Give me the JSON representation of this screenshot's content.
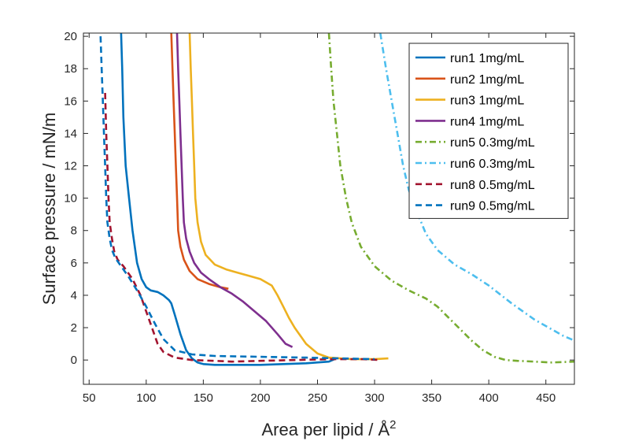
{
  "chart_data": {
    "type": "line",
    "xlabel": "Area per lipid / Å",
    "xlabel_superscript": "2",
    "ylabel": "Surface pressure / mN/m",
    "xlim": [
      45,
      475
    ],
    "ylim": [
      -1.5,
      20.2
    ],
    "xticks": [
      50,
      100,
      150,
      200,
      250,
      300,
      350,
      400,
      450
    ],
    "yticks": [
      0,
      2,
      4,
      6,
      8,
      10,
      12,
      14,
      16,
      18,
      20
    ],
    "grid": false,
    "legend_position": "top-right",
    "series": [
      {
        "name": "run1 1mg/mL",
        "color": "#0072BD",
        "dash": "solid",
        "x": [
          78,
          79,
          80,
          82,
          85,
          88,
          92,
          96,
          100,
          104,
          110,
          115,
          120,
          122,
          125,
          130,
          135,
          140,
          145,
          150,
          160,
          180,
          200,
          220,
          240,
          260,
          265
        ],
        "y": [
          20.2,
          18,
          15,
          12,
          10,
          8,
          6,
          5,
          4.5,
          4.3,
          4.2,
          4.0,
          3.7,
          3.5,
          2.8,
          1.6,
          0.6,
          0.1,
          -0.15,
          -0.25,
          -0.3,
          -0.3,
          -0.3,
          -0.25,
          -0.2,
          -0.1,
          0.05
        ]
      },
      {
        "name": "run2 1mg/mL",
        "color": "#D95319",
        "dash": "solid",
        "x": [
          122,
          123,
          124,
          125,
          126,
          127,
          128,
          130,
          133,
          138,
          145,
          155,
          165,
          172
        ],
        "y": [
          20.2,
          18,
          16,
          14,
          12,
          10,
          8,
          7,
          6.2,
          5.5,
          5.0,
          4.7,
          4.5,
          4.4
        ]
      },
      {
        "name": "run3 1mg/mL",
        "color": "#EDB120",
        "dash": "solid",
        "x": [
          138,
          139,
          140,
          141,
          142,
          143,
          145,
          148,
          152,
          160,
          170,
          180,
          190,
          200,
          210,
          215,
          220,
          225,
          230,
          240,
          250,
          260,
          280,
          300,
          312
        ],
        "y": [
          20.2,
          18,
          16,
          14,
          12,
          10,
          8.5,
          7.3,
          6.5,
          5.9,
          5.6,
          5.4,
          5.2,
          5.0,
          4.6,
          4.0,
          3.3,
          2.6,
          2.0,
          1.0,
          0.4,
          0.15,
          0.05,
          0.05,
          0.1
        ]
      },
      {
        "name": "run4 1mg/mL",
        "color": "#7E2F8E",
        "dash": "solid",
        "x": [
          127,
          128,
          129,
          130,
          131,
          132,
          133,
          135,
          138,
          142,
          148,
          155,
          165,
          175,
          185,
          195,
          205,
          215,
          222,
          228
        ],
        "y": [
          20.2,
          18,
          16,
          14,
          12,
          10,
          8.5,
          7.5,
          6.7,
          6.0,
          5.4,
          5.0,
          4.5,
          4.1,
          3.6,
          3.0,
          2.4,
          1.6,
          1.0,
          0.8
        ]
      },
      {
        "name": "run5 0.3mg/mL",
        "color": "#77AC30",
        "dash": "dashdot",
        "x": [
          260,
          262,
          264,
          267,
          270,
          275,
          280,
          288,
          300,
          315,
          330,
          345,
          355,
          365,
          375,
          385,
          395,
          405,
          415,
          425,
          440,
          455,
          475
        ],
        "y": [
          20.2,
          18,
          16,
          14,
          12,
          10,
          8.5,
          7.0,
          5.8,
          4.9,
          4.3,
          3.8,
          3.3,
          2.6,
          1.9,
          1.2,
          0.6,
          0.2,
          0.0,
          -0.05,
          -0.1,
          -0.15,
          -0.1
        ]
      },
      {
        "name": "run6 0.3mg/mL",
        "color": "#4DBEEE",
        "dash": "dashdot",
        "x": [
          305,
          310,
          315,
          320,
          325,
          330,
          338,
          345,
          355,
          370,
          385,
          400,
          420,
          440,
          455,
          465,
          475
        ],
        "y": [
          20.2,
          18,
          16,
          14,
          12,
          10.5,
          9.0,
          7.8,
          6.8,
          5.9,
          5.3,
          4.6,
          3.5,
          2.5,
          1.9,
          1.5,
          1.2
        ]
      },
      {
        "name": "run8 0.5mg/mL",
        "color": "#A2142F",
        "dash": "dashed",
        "x": [
          64,
          65,
          66,
          67,
          68,
          70,
          72,
          75,
          80,
          88,
          95,
          100,
          105,
          110,
          115,
          125,
          140,
          160,
          175,
          200,
          230,
          260,
          290,
          305
        ],
        "y": [
          16.5,
          14,
          12,
          10,
          8.5,
          7.5,
          6.7,
          6.2,
          5.8,
          5.0,
          4.0,
          3.0,
          2.0,
          1.0,
          0.5,
          0.15,
          0.0,
          -0.05,
          -0.1,
          -0.05,
          0.0,
          0.05,
          0.05,
          0.0
        ]
      },
      {
        "name": "run9 0.5mg/mL",
        "color": "#0072BD",
        "dash": "dashed",
        "x": [
          60,
          61,
          62,
          63,
          64,
          65,
          66,
          68,
          70,
          73,
          78,
          85,
          92,
          100,
          108,
          115,
          125,
          140,
          160,
          200,
          240,
          270,
          300
        ],
        "y": [
          20.0,
          18,
          16,
          14,
          12,
          10,
          8.5,
          7.5,
          6.8,
          6.3,
          5.8,
          5.1,
          4.3,
          3.3,
          2.2,
          1.3,
          0.6,
          0.35,
          0.25,
          0.2,
          0.15,
          0.1,
          0.05
        ]
      }
    ]
  }
}
